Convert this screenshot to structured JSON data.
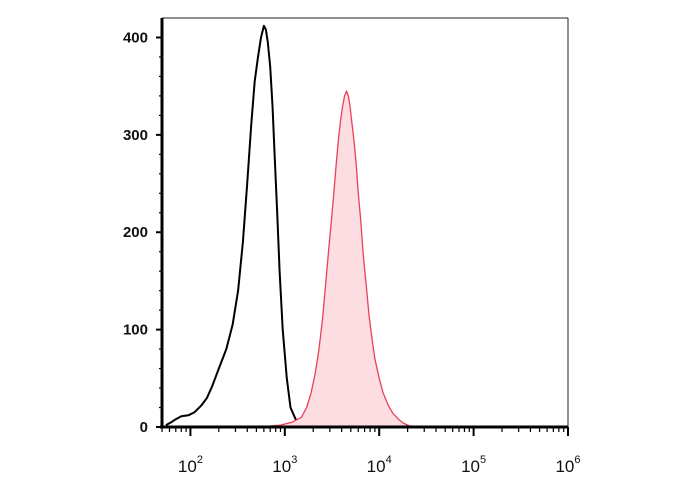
{
  "chart_data": {
    "type": "area",
    "title": "",
    "xlabel": "",
    "ylabel": "",
    "x_scale": "log",
    "xlim": [
      50,
      1000000
    ],
    "ylim": [
      0,
      420
    ],
    "grid": false,
    "legend": "none",
    "x_ticks": [
      {
        "value": 100,
        "base": "10",
        "exp": "2"
      },
      {
        "value": 1000,
        "base": "10",
        "exp": "3"
      },
      {
        "value": 10000,
        "base": "10",
        "exp": "4"
      },
      {
        "value": 100000,
        "base": "10",
        "exp": "5"
      },
      {
        "value": 1000000,
        "base": "10",
        "exp": "6"
      }
    ],
    "y_ticks": [
      {
        "value": 0,
        "label": "0"
      },
      {
        "value": 100,
        "label": "100"
      },
      {
        "value": 200,
        "label": "200"
      },
      {
        "value": 300,
        "label": "300"
      },
      {
        "value": 400,
        "label": "400"
      }
    ],
    "series": [
      {
        "style": "line",
        "color": "#000000",
        "x": [
          55,
          63,
          70,
          80,
          95,
          110,
          130,
          150,
          170,
          200,
          240,
          280,
          320,
          360,
          400,
          440,
          480,
          520,
          560,
          600,
          630,
          660,
          700,
          740,
          780,
          830,
          880,
          950,
          1050,
          1150,
          1300,
          1500,
          1800,
          2200,
          3000,
          5000,
          20000,
          1000000
        ],
        "y": [
          2,
          5,
          8,
          11,
          12,
          15,
          22,
          30,
          42,
          60,
          80,
          105,
          140,
          190,
          250,
          310,
          355,
          380,
          400,
          412,
          408,
          395,
          370,
          330,
          280,
          220,
          160,
          100,
          50,
          20,
          8,
          3,
          1,
          0,
          0,
          0,
          0,
          0
        ]
      },
      {
        "style": "filled",
        "color": "#e8405a",
        "fill": "#fbdde2",
        "x": [
          200,
          500,
          900,
          1200,
          1500,
          1700,
          1900,
          2100,
          2300,
          2500,
          2700,
          2900,
          3100,
          3300,
          3500,
          3700,
          3900,
          4100,
          4300,
          4500,
          4700,
          4900,
          5100,
          5400,
          5700,
          6000,
          6400,
          6800,
          7300,
          7800,
          8400,
          9000,
          10000,
          11000,
          12500,
          14000,
          16000,
          18000,
          21000,
          25000
        ],
        "y": [
          0,
          0,
          2,
          5,
          10,
          20,
          35,
          55,
          80,
          110,
          145,
          180,
          210,
          240,
          270,
          295,
          315,
          330,
          340,
          345,
          340,
          330,
          315,
          295,
          270,
          240,
          210,
          175,
          145,
          115,
          90,
          70,
          50,
          35,
          22,
          14,
          8,
          4,
          1,
          0
        ]
      }
    ]
  }
}
